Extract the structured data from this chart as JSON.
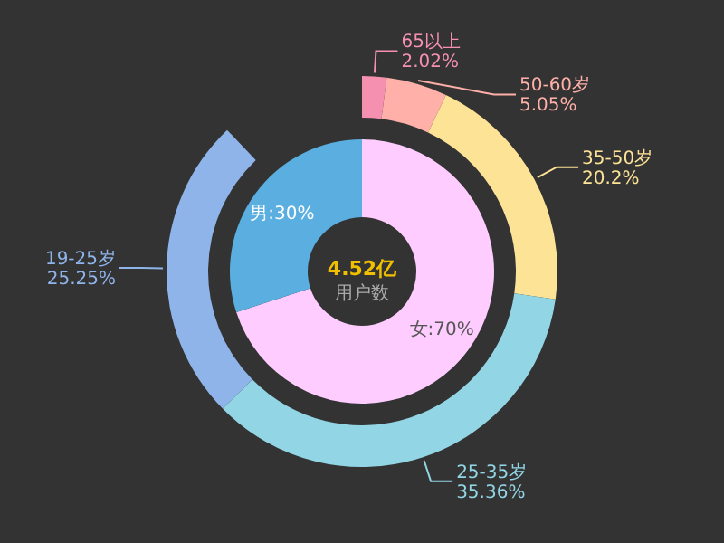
{
  "chart_data": [
    {
      "type": "donut",
      "categories": [
        "65以上",
        "50-60岁",
        "35-50岁",
        "25-35岁",
        "19-25岁"
      ],
      "values": [
        2.02,
        5.05,
        20.2,
        35.36,
        25.25
      ],
      "value_labels": [
        "2.02%",
        "5.05%",
        "20.2%",
        "35.36%",
        "25.25%"
      ],
      "colors": [
        "#f590b0",
        "#ffb0a8",
        "#fde396",
        "#92d6e6",
        "#8fb4ea"
      ]
    },
    {
      "type": "donut",
      "categories": [
        "女",
        "男"
      ],
      "values": [
        70,
        30
      ],
      "value_labels": [
        "70%",
        "30%"
      ],
      "colors": [
        "#ffccff",
        "#5aaee0"
      ],
      "annotations": [
        "4.52亿",
        "用户数"
      ]
    }
  ]
}
